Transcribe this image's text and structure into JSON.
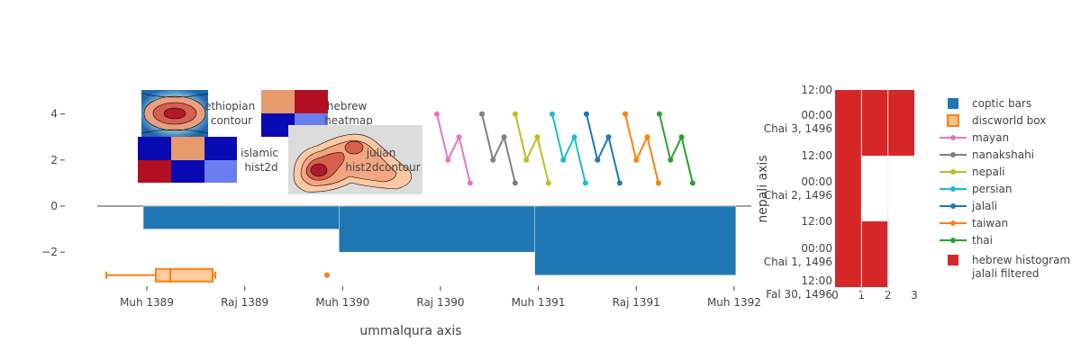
{
  "chart_data": [
    {
      "type": "bar",
      "title": "",
      "xlabel": "ummalqura axis",
      "ylabel": "",
      "x_ticks": [
        "Muh 1389",
        "Raj 1389",
        "Muh 1390",
        "Raj 1390",
        "Muh 1391",
        "Raj 1391",
        "Muh 1392"
      ],
      "y_ticks": [
        "−2",
        "0",
        "2",
        "4"
      ],
      "ylim": [
        -3.6,
        5.0
      ],
      "series": [
        {
          "name": "coptic bars",
          "color": "#1f77b4",
          "bars": [
            {
              "start": "Muh 1389",
              "end": "Muh 1390",
              "value": -1
            },
            {
              "start": "Muh 1390",
              "end": "Muh 1391",
              "value": -2
            },
            {
              "start": "Muh 1391",
              "end": "Muh 1392",
              "value": -3
            }
          ]
        },
        {
          "name": "discworld box",
          "color": "#ff7f0e",
          "y": -3,
          "whisker_low": "Dhu 1388",
          "q1": "Rab II 1389",
          "median": "Jum I 1389",
          "q3": "Dhu 1389",
          "whisker_high": "Dhu 1389",
          "outlier": "Dhu 1390"
        },
        {
          "name": "mayan",
          "color": "#e377c2",
          "y": [
            4,
            2,
            3,
            1
          ]
        },
        {
          "name": "nanakshahi",
          "color": "#7f7f7f",
          "y": [
            4,
            2,
            3,
            1
          ]
        },
        {
          "name": "nepali",
          "color": "#bcbd22",
          "y": [
            4,
            2,
            3,
            1
          ]
        },
        {
          "name": "persian",
          "color": "#17becf",
          "y": [
            4,
            2,
            3,
            1
          ]
        },
        {
          "name": "jalali",
          "color": "#1f77b4",
          "y": [
            4,
            2,
            3,
            1
          ]
        },
        {
          "name": "taiwan",
          "color": "#ff7f0e",
          "y": [
            4,
            2,
            3,
            1
          ]
        },
        {
          "name": "thai",
          "color": "#2ca02c",
          "y": [
            4,
            2,
            3,
            1
          ]
        }
      ],
      "insets": [
        {
          "type": "contour",
          "label_lines": [
            "ethiopian",
            "contour"
          ]
        },
        {
          "type": "heatmap",
          "label_lines": [
            "hebrew",
            "heatmap"
          ]
        },
        {
          "type": "heatmap",
          "label_lines": [
            "islamic",
            "hist2d"
          ]
        },
        {
          "type": "contour",
          "label_lines": [
            "julian",
            "hist2dcontour"
          ]
        }
      ]
    },
    {
      "type": "bar",
      "orientation": "horizontal",
      "title": "",
      "ylabel": "nepali axis",
      "x_ticks": [
        "0",
        "1",
        "2",
        "3"
      ],
      "y_ticks": [
        {
          "lines": [
            "12:00"
          ]
        },
        {
          "lines": [
            "00:00",
            "Chai 3, 1496"
          ]
        },
        {
          "lines": [
            "12:00"
          ]
        },
        {
          "lines": [
            "00:00",
            "Chai 2, 1496"
          ]
        },
        {
          "lines": [
            "12:00"
          ]
        },
        {
          "lines": [
            "00:00",
            "Chai 1, 1496"
          ]
        },
        {
          "lines": [
            "12:00",
            "Fal 30, 1496"
          ]
        }
      ],
      "series": [
        {
          "name": "hebrew histogram jalali filtered",
          "color": "#d62728",
          "bins": [
            {
              "from": "Fal 30, 1496 12:00",
              "to": "Chai 1, 1496 12:00",
              "count": 2
            },
            {
              "from": "Chai 1, 1496 12:00",
              "to": "Chai 2, 1496 12:00",
              "count": 1
            },
            {
              "from": "Chai 2, 1496 12:00",
              "to": "Chai 3, 1496 12:00",
              "count": 3
            }
          ]
        }
      ]
    }
  ],
  "legend": {
    "items": [
      {
        "lines": [
          "coptic bars"
        ],
        "kind": "bar",
        "color": "#1f77b4"
      },
      {
        "lines": [
          "discworld box"
        ],
        "kind": "box",
        "color": "#ff7f0e"
      },
      {
        "lines": [
          "mayan"
        ],
        "kind": "line",
        "color": "#e377c2"
      },
      {
        "lines": [
          "nanakshahi"
        ],
        "kind": "line",
        "color": "#7f7f7f"
      },
      {
        "lines": [
          "nepali"
        ],
        "kind": "line",
        "color": "#bcbd22"
      },
      {
        "lines": [
          "persian"
        ],
        "kind": "line",
        "color": "#17becf"
      },
      {
        "lines": [
          "jalali"
        ],
        "kind": "line",
        "color": "#1f77b4"
      },
      {
        "lines": [
          "taiwan"
        ],
        "kind": "line",
        "color": "#ff7f0e"
      },
      {
        "lines": [
          "thai"
        ],
        "kind": "line",
        "color": "#2ca02c"
      },
      {
        "lines": [
          "hebrew histogram",
          "jalali filtered"
        ],
        "kind": "bar",
        "color": "#d62728"
      }
    ]
  }
}
